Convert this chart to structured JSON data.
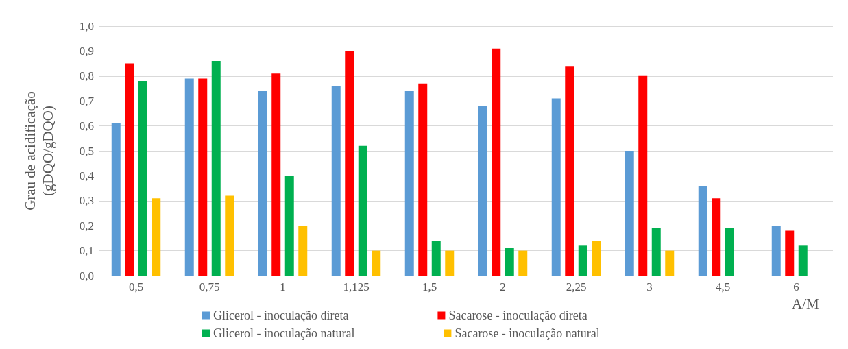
{
  "chart_data": {
    "type": "bar",
    "xlabel": "A/M",
    "ylabel": "Grau de acidificação\n(gDQO/gDQO)",
    "categories": [
      "0,5",
      "0,75",
      "1",
      "1,125",
      "1,5",
      "2",
      "2,25",
      "3",
      "4,5",
      "6"
    ],
    "series": [
      {
        "name": "Glicerol - inoculação direta",
        "color": "#5b9bd5",
        "values": [
          0.61,
          0.79,
          0.74,
          0.76,
          0.74,
          0.68,
          0.71,
          0.5,
          0.36,
          0.2
        ]
      },
      {
        "name": "Sacarose - inoculação direta",
        "color": "#ff0000",
        "values": [
          0.85,
          0.79,
          0.81,
          0.9,
          0.77,
          0.91,
          0.84,
          0.8,
          0.31,
          0.18
        ]
      },
      {
        "name": "Glicerol - inoculação natural",
        "color": "#00b050",
        "values": [
          0.78,
          0.86,
          0.4,
          0.52,
          0.14,
          0.11,
          0.12,
          0.19,
          0.19,
          0.12
        ]
      },
      {
        "name": "Sacarose - inoculação natural",
        "color": "#ffc000",
        "values": [
          0.31,
          0.32,
          0.2,
          0.1,
          0.1,
          0.1,
          0.14,
          0.1,
          null,
          null
        ]
      }
    ],
    "ylim": [
      0,
      1
    ],
    "yticks": [
      {
        "value": 0,
        "label": "0,0"
      },
      {
        "value": 0.1,
        "label": "0,1"
      },
      {
        "value": 0.2,
        "label": "0,2"
      },
      {
        "value": 0.3,
        "label": "0,3"
      },
      {
        "value": 0.4,
        "label": "0,4"
      },
      {
        "value": 0.5,
        "label": "0,5"
      },
      {
        "value": 0.6,
        "label": "0,6"
      },
      {
        "value": 0.7,
        "label": "0,7"
      },
      {
        "value": 0.8,
        "label": "0,8"
      },
      {
        "value": 0.9,
        "label": "0,9"
      },
      {
        "value": 1,
        "label": "1,0"
      }
    ],
    "grid": "y",
    "legend": "bottom"
  }
}
